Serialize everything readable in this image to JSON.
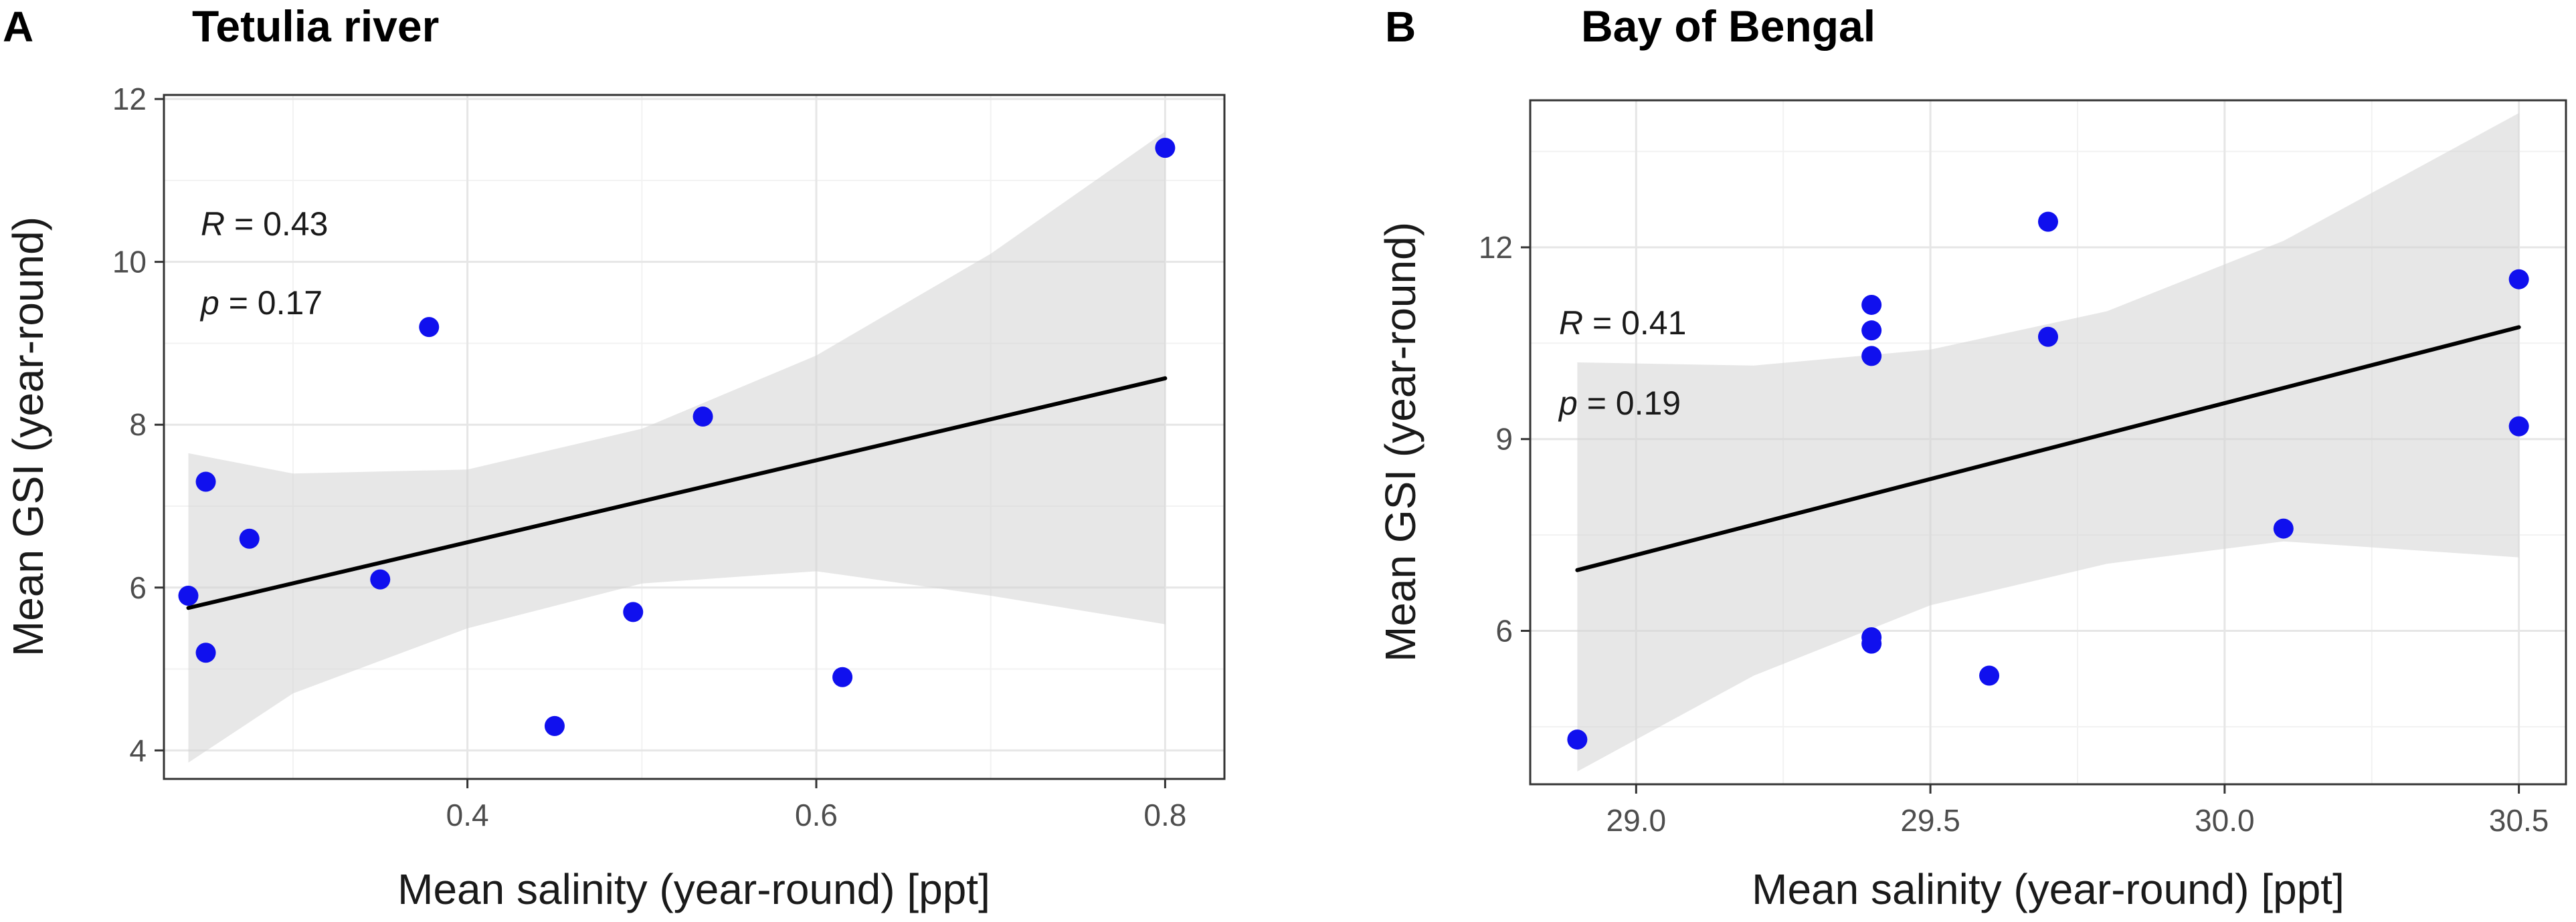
{
  "colors": {
    "point": "#1010ee",
    "fit_line": "#000000",
    "ribbon": "#d3d3d3"
  },
  "chart_data": [
    {
      "type": "scatter",
      "panel": "A",
      "title": "Tetulia river",
      "xlabel": "Mean salinity (year-round) [ppt]",
      "ylabel": "Mean GSI (year-round)",
      "xlim": [
        0.226,
        0.834
      ],
      "ylim": [
        3.65,
        12.05
      ],
      "xticks": [
        0.4,
        0.6,
        0.8
      ],
      "xtick_labels": [
        "0.4",
        "0.6",
        "0.8"
      ],
      "yticks": [
        4,
        6,
        8,
        10,
        12
      ],
      "ytick_labels": [
        "4",
        "6",
        "8",
        "10",
        "12"
      ],
      "points": [
        {
          "x": 0.24,
          "y": 5.9
        },
        {
          "x": 0.25,
          "y": 7.3
        },
        {
          "x": 0.25,
          "y": 5.2
        },
        {
          "x": 0.275,
          "y": 6.6
        },
        {
          "x": 0.35,
          "y": 6.1
        },
        {
          "x": 0.378,
          "y": 9.2
        },
        {
          "x": 0.45,
          "y": 4.3
        },
        {
          "x": 0.495,
          "y": 5.7
        },
        {
          "x": 0.535,
          "y": 8.1
        },
        {
          "x": 0.615,
          "y": 4.9
        },
        {
          "x": 0.8,
          "y": 11.4
        }
      ],
      "fit_line": {
        "x": [
          0.24,
          0.8
        ],
        "y": [
          5.75,
          8.57
        ]
      },
      "confidence_band": {
        "x": [
          0.24,
          0.3,
          0.4,
          0.5,
          0.6,
          0.7,
          0.8
        ],
        "upper": [
          7.65,
          7.4,
          7.45,
          7.95,
          8.85,
          10.1,
          11.6
        ],
        "lower": [
          3.85,
          4.7,
          5.5,
          6.05,
          6.2,
          5.9,
          5.55
        ]
      },
      "annotations": {
        "r_symbol": "R",
        "r_value": " = 0.43",
        "p_symbol": "p",
        "p_value": " = 0.17"
      }
    },
    {
      "type": "scatter",
      "panel": "B",
      "title": "Bay of Bengal",
      "xlabel": "Mean salinity (year-round) [ppt]",
      "ylabel": "Mean GSI (year-round)",
      "xlim": [
        28.82,
        30.58
      ],
      "ylim": [
        3.6,
        14.3
      ],
      "xticks": [
        29.0,
        29.5,
        30.0,
        30.5
      ],
      "xtick_labels": [
        "29.0",
        "29.5",
        "30.0",
        "30.5"
      ],
      "yticks": [
        6,
        9,
        12
      ],
      "ytick_labels": [
        "6",
        "9",
        "12"
      ],
      "points": [
        {
          "x": 28.9,
          "y": 4.3
        },
        {
          "x": 29.4,
          "y": 11.1
        },
        {
          "x": 29.4,
          "y": 10.7
        },
        {
          "x": 29.4,
          "y": 10.3
        },
        {
          "x": 29.4,
          "y": 5.9
        },
        {
          "x": 29.4,
          "y": 5.8
        },
        {
          "x": 29.6,
          "y": 5.3
        },
        {
          "x": 29.7,
          "y": 12.4
        },
        {
          "x": 29.7,
          "y": 10.6
        },
        {
          "x": 30.1,
          "y": 7.6
        },
        {
          "x": 30.5,
          "y": 11.5
        },
        {
          "x": 30.5,
          "y": 9.2
        }
      ],
      "fit_line": {
        "x": [
          28.9,
          30.5
        ],
        "y": [
          6.95,
          10.75
        ]
      },
      "confidence_band": {
        "x": [
          28.9,
          29.2,
          29.5,
          29.8,
          30.1,
          30.5
        ],
        "upper": [
          10.2,
          10.15,
          10.4,
          11.0,
          12.1,
          14.1
        ],
        "lower": [
          3.8,
          5.3,
          6.4,
          7.05,
          7.4,
          7.15
        ]
      },
      "annotations": {
        "r_symbol": "R",
        "r_value": " = 0.41",
        "p_symbol": "p",
        "p_value": " = 0.19"
      }
    }
  ]
}
